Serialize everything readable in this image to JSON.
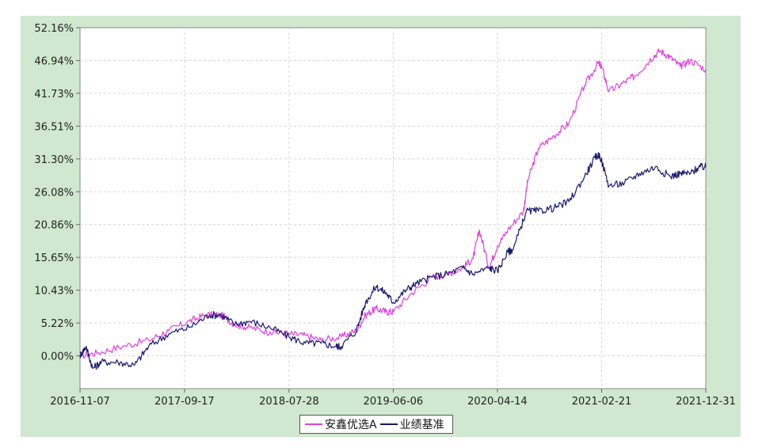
{
  "chart_data": {
    "type": "line",
    "title": "",
    "xlabel": "",
    "ylabel": "",
    "x_ticks": [
      "2016-11-07",
      "2017-09-17",
      "2018-07-28",
      "2019-06-06",
      "2020-04-14",
      "2021-02-21",
      "2021-12-31"
    ],
    "y_ticks": [
      "52.16%",
      "46.94%",
      "41.73%",
      "36.51%",
      "31.30%",
      "26.08%",
      "20.86%",
      "15.65%",
      "10.43%",
      "5.22%",
      "0.00%"
    ],
    "ylim": [
      -5.22,
      52.16
    ],
    "xlim": [
      "2016-11-07",
      "2021-12-31"
    ],
    "grid": true,
    "legend_position": "bottom-center",
    "series": [
      {
        "name": "安鑫优选A",
        "color": "#e040e0",
        "x": [
          "2016-11-07",
          "2017-01-01",
          "2017-03-15",
          "2017-06-01",
          "2017-08-01",
          "2017-10-01",
          "2017-11-20",
          "2018-01-05",
          "2018-02-15",
          "2018-04-01",
          "2018-06-01",
          "2018-07-28",
          "2018-09-15",
          "2018-11-01",
          "2019-01-01",
          "2019-02-15",
          "2019-03-15",
          "2019-04-15",
          "2019-05-15",
          "2019-06-06",
          "2019-08-01",
          "2019-10-01",
          "2019-11-15",
          "2020-01-01",
          "2020-02-01",
          "2020-02-20",
          "2020-03-20",
          "2020-04-14",
          "2020-05-15",
          "2020-07-01",
          "2020-07-15",
          "2020-08-15",
          "2020-10-01",
          "2020-11-15",
          "2021-01-01",
          "2021-02-10",
          "2021-02-21",
          "2021-03-15",
          "2021-05-01",
          "2021-06-01",
          "2021-07-15",
          "2021-08-15",
          "2021-09-15",
          "2021-10-15",
          "2021-11-15",
          "2021-12-31"
        ],
        "values": [
          0.0,
          0.5,
          1.5,
          2.5,
          4.0,
          5.5,
          6.5,
          6.5,
          5.0,
          4.5,
          3.8,
          3.5,
          3.2,
          2.5,
          3.0,
          4.0,
          6.5,
          7.5,
          7.0,
          7.0,
          10.0,
          12.5,
          13.0,
          14.0,
          15.5,
          20.0,
          14.0,
          17.5,
          20.0,
          23.0,
          28.0,
          33.0,
          35.0,
          37.0,
          43.0,
          46.5,
          46.0,
          42.0,
          43.5,
          44.5,
          47.0,
          48.5,
          47.5,
          46.0,
          47.0,
          45.5
        ]
      },
      {
        "name": "业绩基准",
        "color": "#1a1a6e",
        "x": [
          "2016-11-07",
          "2016-11-25",
          "2016-12-15",
          "2017-01-10",
          "2017-03-01",
          "2017-04-20",
          "2017-06-01",
          "2017-08-01",
          "2017-10-01",
          "2017-12-01",
          "2018-01-05",
          "2018-02-15",
          "2018-04-01",
          "2018-06-01",
          "2018-07-28",
          "2018-09-15",
          "2018-11-01",
          "2018-12-15",
          "2019-01-01",
          "2019-02-15",
          "2019-03-15",
          "2019-04-15",
          "2019-05-15",
          "2019-06-06",
          "2019-07-15",
          "2019-08-15",
          "2019-10-01",
          "2019-11-15",
          "2020-01-01",
          "2020-02-01",
          "2020-03-20",
          "2020-04-14",
          "2020-05-15",
          "2020-06-01",
          "2020-07-10",
          "2020-08-15",
          "2020-10-01",
          "2020-11-15",
          "2021-01-01",
          "2021-02-01",
          "2021-02-15",
          "2021-03-15",
          "2021-05-01",
          "2021-06-15",
          "2021-08-01",
          "2021-09-15",
          "2021-10-15",
          "2021-11-15",
          "2021-12-10",
          "2021-12-31"
        ],
        "values": [
          0.0,
          1.5,
          -2.0,
          -1.0,
          -1.0,
          -1.5,
          1.5,
          3.5,
          4.5,
          6.5,
          6.5,
          5.0,
          5.5,
          4.5,
          3.0,
          2.0,
          2.0,
          1.5,
          1.5,
          4.0,
          8.5,
          11.0,
          10.0,
          8.5,
          10.5,
          11.5,
          12.5,
          13.0,
          14.0,
          13.0,
          14.0,
          13.5,
          16.5,
          17.0,
          23.0,
          23.0,
          23.5,
          24.5,
          28.5,
          31.5,
          32.0,
          27.0,
          27.5,
          29.0,
          30.0,
          28.5,
          29.0,
          29.0,
          30.0,
          30.0
        ]
      }
    ]
  }
}
